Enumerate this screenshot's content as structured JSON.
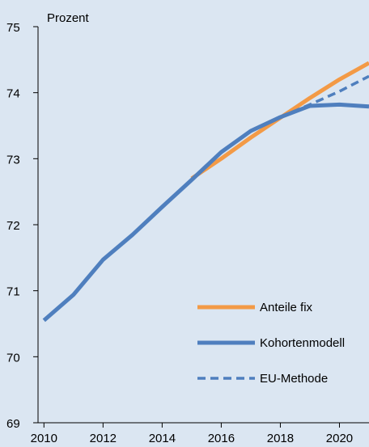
{
  "chart_data": {
    "type": "line",
    "ylabel": "Prozent",
    "xlim": [
      2009.8,
      2021.0
    ],
    "ylim": [
      69,
      75
    ],
    "x_ticks": [
      2010,
      2012,
      2014,
      2016,
      2018,
      2020
    ],
    "y_ticks": [
      69,
      70,
      71,
      72,
      73,
      74,
      75
    ],
    "grid": false,
    "legend_position": "bottom-right",
    "series": [
      {
        "name": "Anteile fix",
        "style": "solid",
        "color": "#f39a46",
        "x": [
          2015,
          2016,
          2017,
          2018,
          2019,
          2020,
          2021
        ],
        "y": [
          72.7,
          73.0,
          73.32,
          73.62,
          73.92,
          74.2,
          74.45
        ]
      },
      {
        "name": "Kohortenmodell",
        "style": "solid",
        "color": "#4f7fbe",
        "x": [
          2010,
          2011,
          2012,
          2013,
          2014,
          2015,
          2016,
          2017,
          2018,
          2019,
          2020,
          2021
        ],
        "y": [
          70.55,
          70.94,
          71.47,
          71.85,
          72.27,
          72.68,
          73.1,
          73.42,
          73.63,
          73.8,
          73.82,
          73.79
        ]
      },
      {
        "name": "EU-Methode",
        "style": "dashed",
        "color": "#4f7fbe",
        "x": [
          2018,
          2019,
          2020,
          2021
        ],
        "y": [
          73.63,
          73.82,
          74.02,
          74.25
        ]
      }
    ]
  }
}
